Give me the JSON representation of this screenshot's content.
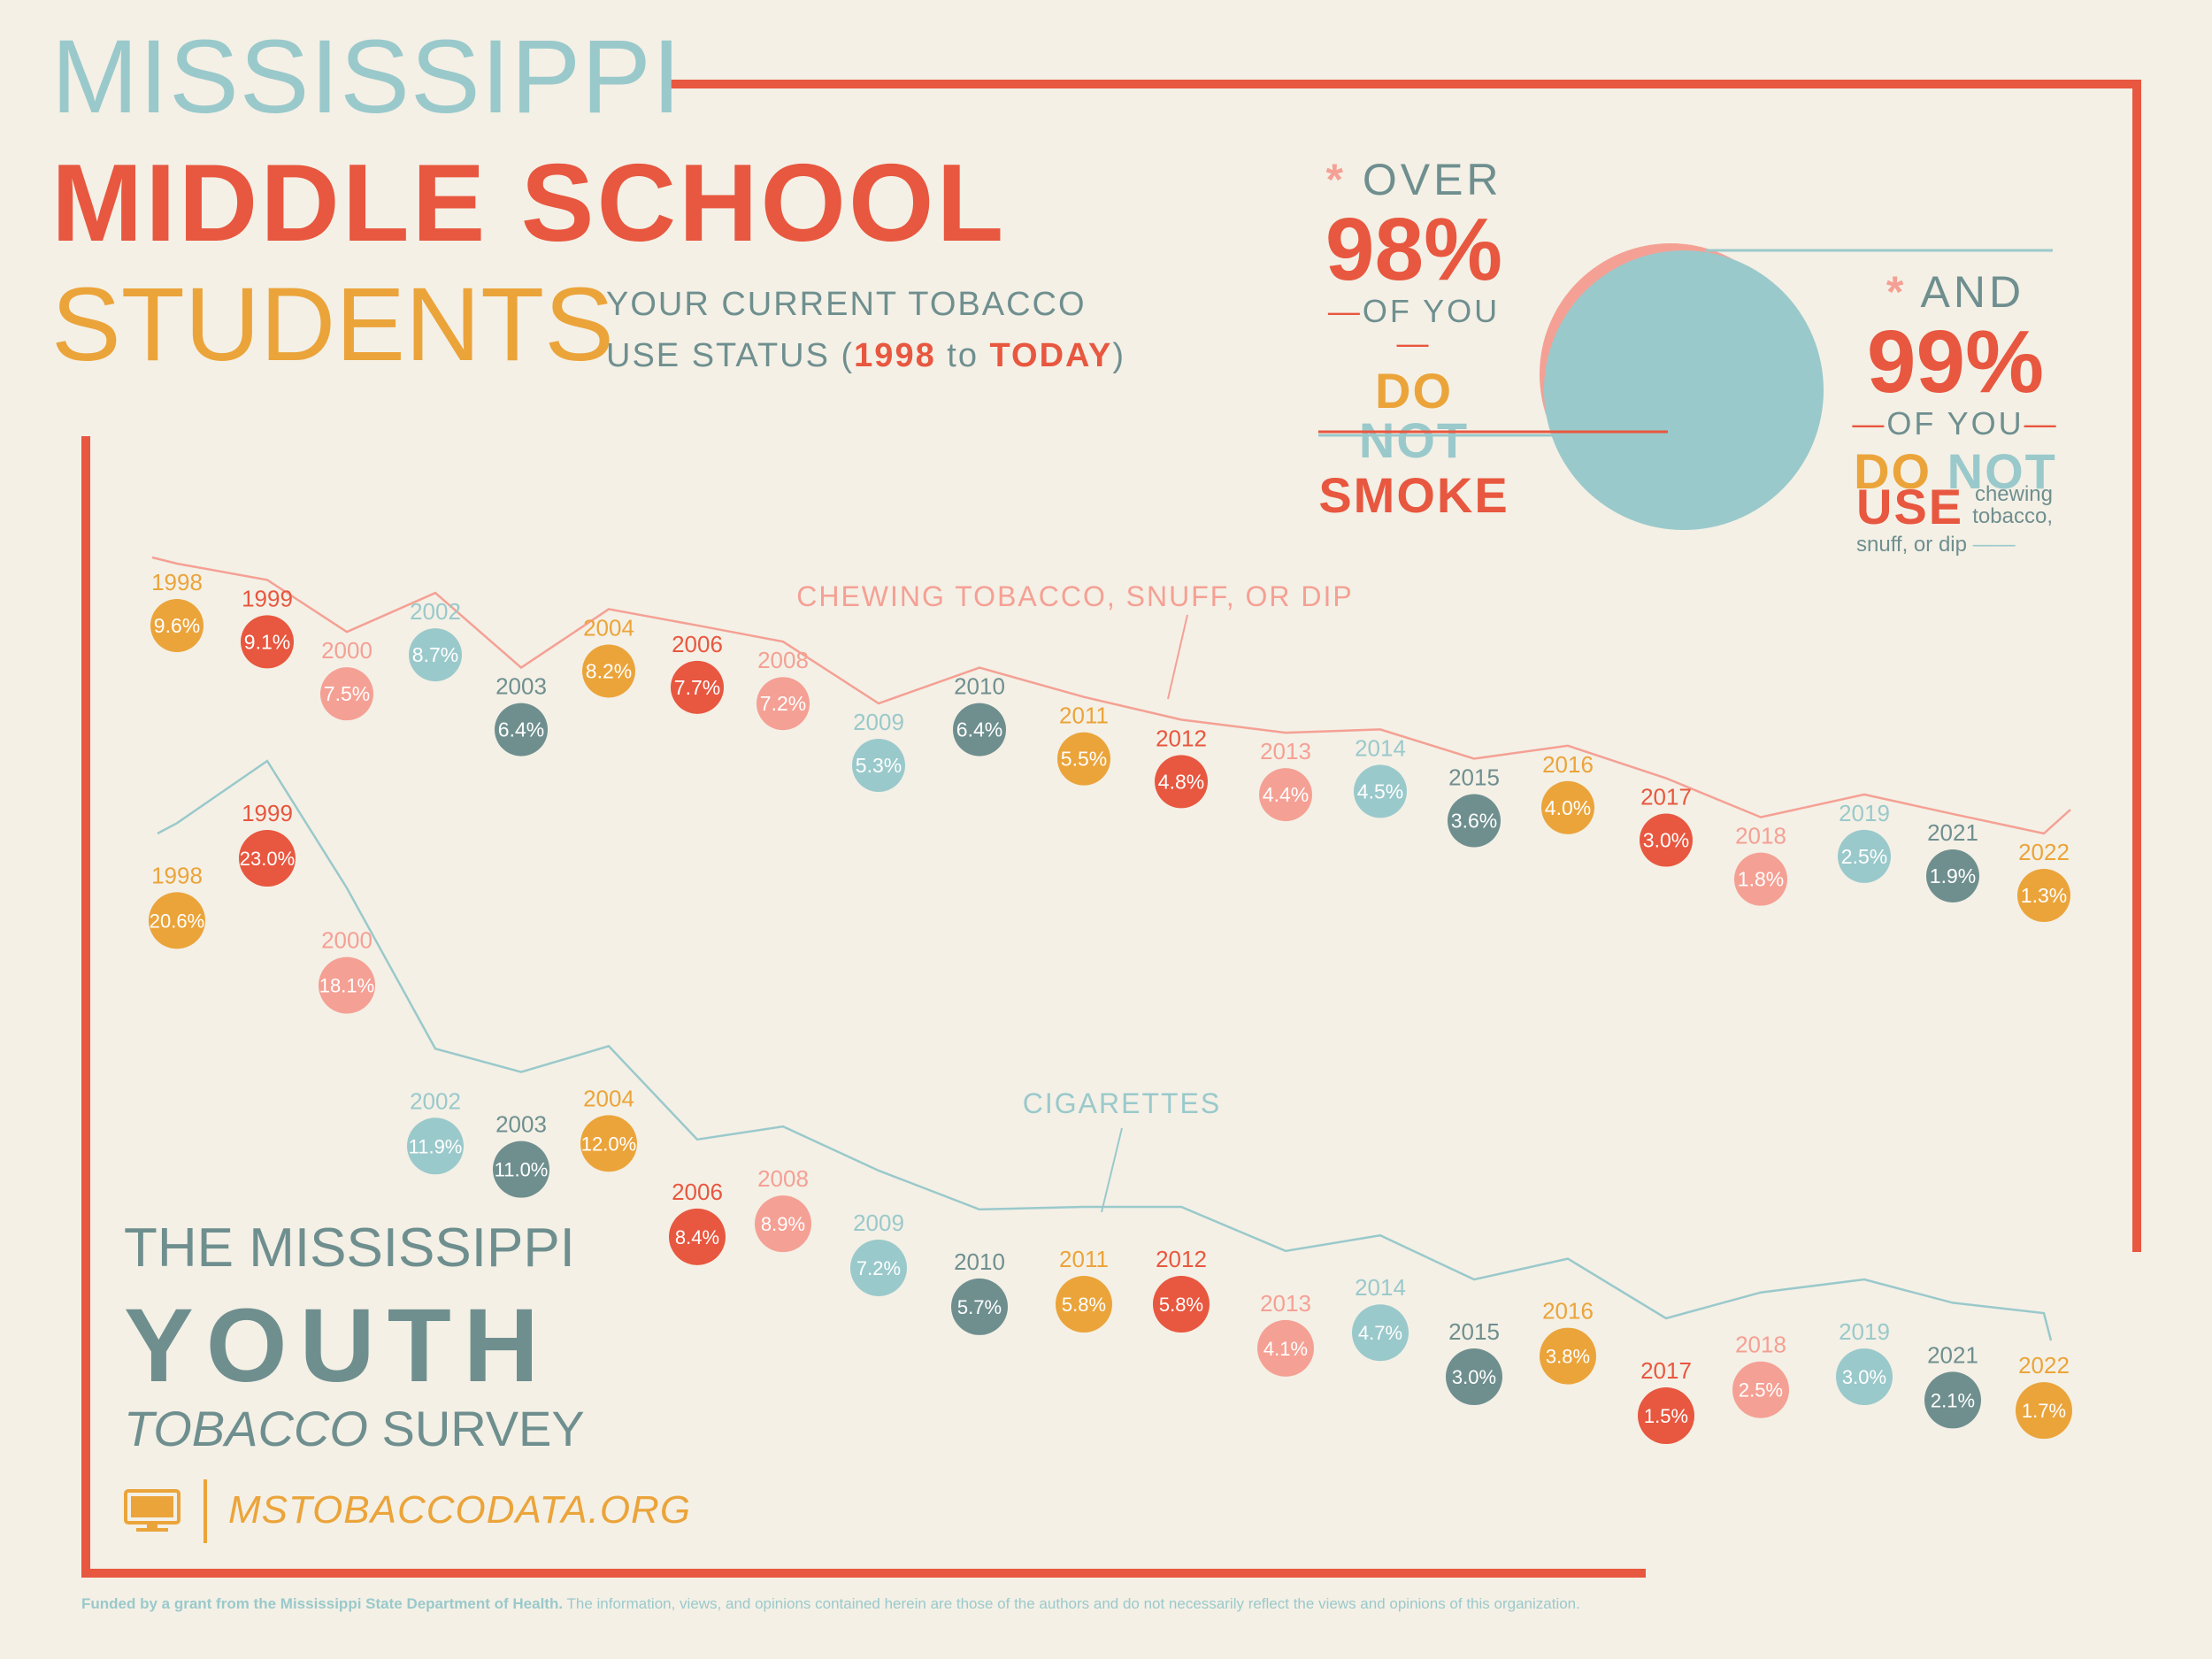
{
  "header": {
    "line1": "MISSISSIPPI",
    "line2": "MIDDLE SCHOOL",
    "line3": "STUDENTS",
    "subtitle_a": "YOUR CURRENT TOBACCO",
    "subtitle_b": "USE STATUS (",
    "subtitle_start": "1998",
    "subtitle_to": " to ",
    "subtitle_end": "TODAY",
    "subtitle_close": ")"
  },
  "stats": {
    "smoke": {
      "star": "*",
      "over": "OVER",
      "pct": "98%",
      "of_you": "OF YOU",
      "do": "DO",
      "not": "NOT",
      "action": "SMOKE"
    },
    "chew": {
      "star": "*",
      "and": "AND",
      "pct": "99%",
      "of_you": "OF YOU",
      "do": "DO",
      "not": "NOT",
      "action": "USE",
      "detail1": "chewing",
      "detail2": "tobacco,",
      "detail3": "snuff, or dip"
    }
  },
  "survey": {
    "line1": "THE MISSISSIPPI",
    "line2": "YOUTH",
    "line3_italic": "TOBACCO",
    "line3_rest": " SURVEY",
    "website": "MSTOBACCODATA.ORG"
  },
  "footer": {
    "bold": "Funded by a grant from the Mississippi State Department of Health.",
    "rest": " The information, views, and opinions contained herein are those of the authors and do not necessarily reflect the views and opinions of this organization."
  },
  "colors": {
    "orange": "#eba43a",
    "red": "#e8573f",
    "salmon": "#f5a094",
    "teal": "#9ac9cb",
    "slate": "#6f8f8f"
  },
  "chart_data": [
    {
      "type": "line",
      "series": [
        {
          "name": "CHEWING TOBACCO, SNUFF, OR DIP",
          "x": [
            "1998",
            "1999",
            "2000",
            "2002",
            "2003",
            "2004",
            "2006",
            "2008",
            "2009",
            "2010",
            "2011",
            "2012",
            "2013",
            "2014",
            "2015",
            "2016",
            "2017",
            "2018",
            "2019",
            "2021",
            "2022"
          ],
          "values": [
            9.6,
            9.1,
            7.5,
            8.7,
            6.4,
            8.2,
            7.7,
            7.2,
            5.3,
            6.4,
            5.5,
            4.8,
            4.4,
            4.5,
            3.6,
            4.0,
            3.0,
            1.8,
            2.5,
            1.9,
            1.3
          ],
          "labels": [
            "9.6%",
            "9.1%",
            "7.5%",
            "8.7%",
            "6.4%",
            "8.2%",
            "7.7%",
            "7.2%",
            "5.3%",
            "6.4%",
            "5.5%",
            "4.8%",
            "4.4%",
            "4.5%",
            "3.6%",
            "4.0%",
            "3.0%",
            "1.8%",
            "2.5%",
            "1.9%",
            "1.3%"
          ]
        }
      ]
    },
    {
      "type": "line",
      "series": [
        {
          "name": "CIGARETTES",
          "x": [
            "1998",
            "1999",
            "2000",
            "2002",
            "2003",
            "2004",
            "2006",
            "2008",
            "2009",
            "2010",
            "2011",
            "2012",
            "2013",
            "2014",
            "2015",
            "2016",
            "2017",
            "2018",
            "2019",
            "2021",
            "2022"
          ],
          "values": [
            20.6,
            23.0,
            18.1,
            11.9,
            11.0,
            12.0,
            8.4,
            8.9,
            7.2,
            5.7,
            5.8,
            5.8,
            4.1,
            4.7,
            3.0,
            3.8,
            1.5,
            2.5,
            3.0,
            2.1,
            1.7
          ],
          "labels": [
            "20.6%",
            "23.0%",
            "18.1%",
            "11.9%",
            "11.0%",
            "12.0%",
            "8.4%",
            "8.9%",
            "7.2%",
            "5.7%",
            "5.8%",
            "5.8%",
            "4.1%",
            "4.7%",
            "3.0%",
            "3.8%",
            "1.5%",
            "2.5%",
            "3.0%",
            "2.1%",
            "1.7%"
          ]
        }
      ]
    },
    {
      "type": "pie",
      "values": [
        98,
        99
      ]
    }
  ]
}
